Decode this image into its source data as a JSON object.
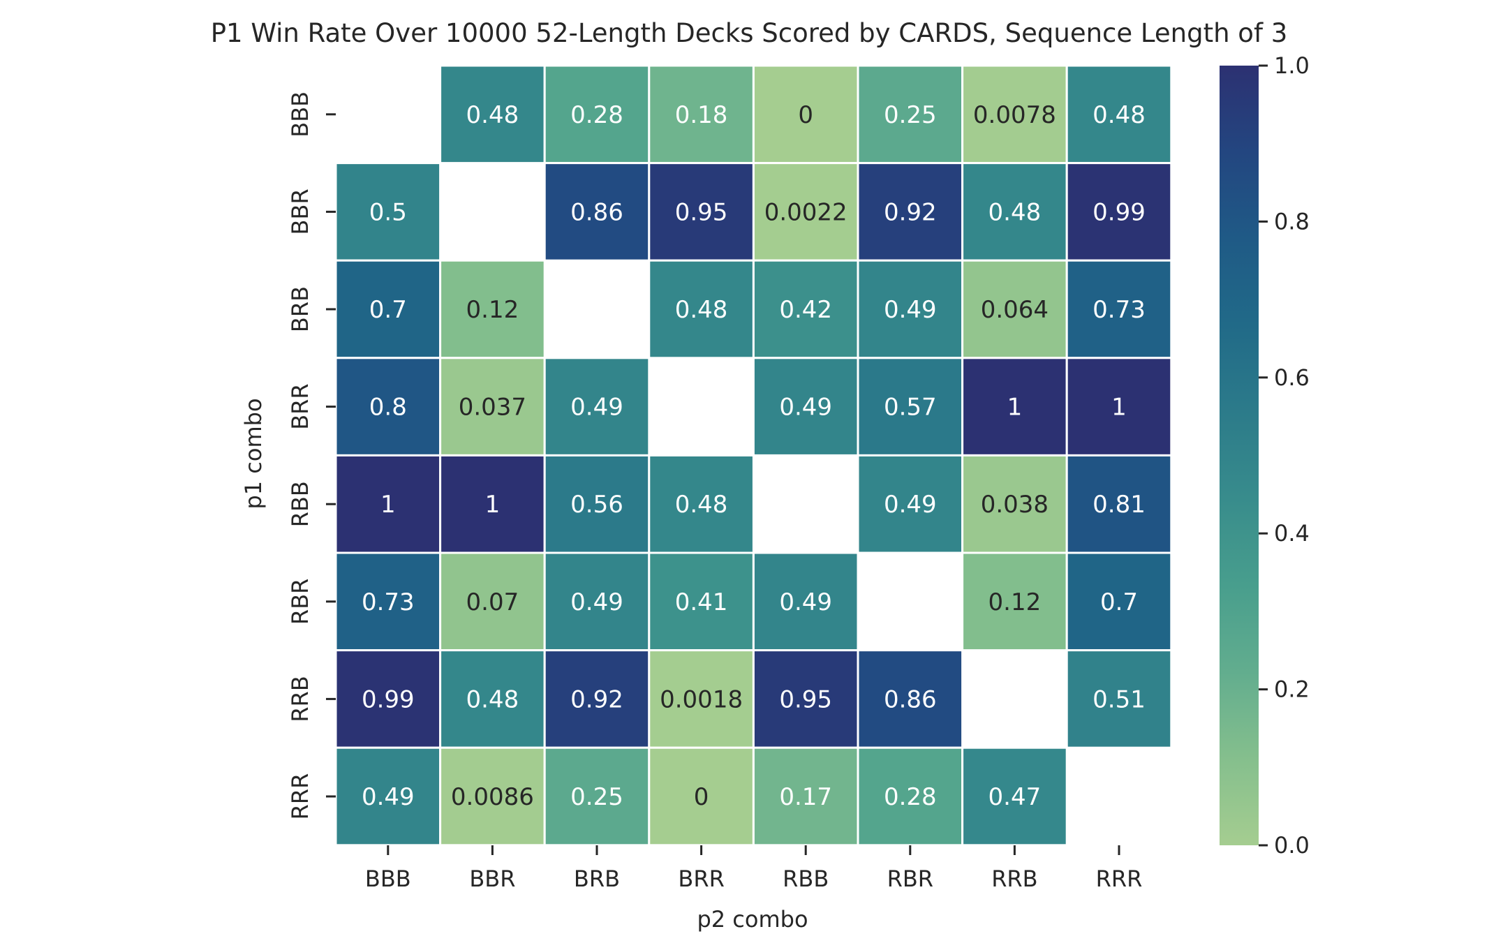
{
  "chart_data": {
    "type": "heatmap",
    "title": "P1 Win Rate Over 10000 52-Length Decks Scored by CARDS, Sequence Length of 3",
    "xlabel": "p2 combo",
    "ylabel": "p1 combo",
    "x_categories": [
      "BBB",
      "BBR",
      "BRB",
      "BRR",
      "RBB",
      "RBR",
      "RRB",
      "RRR"
    ],
    "y_categories": [
      "BBB",
      "BBR",
      "BRB",
      "BRR",
      "RBB",
      "RBR",
      "RRB",
      "RRR"
    ],
    "values": [
      [
        null,
        0.48,
        0.28,
        0.18,
        0,
        0.25,
        0.0078,
        0.48
      ],
      [
        0.5,
        null,
        0.86,
        0.95,
        0.0022,
        0.92,
        0.48,
        0.99
      ],
      [
        0.7,
        0.12,
        null,
        0.48,
        0.42,
        0.49,
        0.064,
        0.73
      ],
      [
        0.8,
        0.037,
        0.49,
        null,
        0.49,
        0.57,
        1,
        1
      ],
      [
        1,
        1,
        0.56,
        0.48,
        null,
        0.49,
        0.038,
        0.81
      ],
      [
        0.73,
        0.07,
        0.49,
        0.41,
        0.49,
        null,
        0.12,
        0.7
      ],
      [
        0.99,
        0.48,
        0.92,
        0.0018,
        0.95,
        0.86,
        null,
        0.51
      ],
      [
        0.49,
        0.0086,
        0.25,
        0,
        0.17,
        0.28,
        0.47,
        null
      ]
    ],
    "colorbar": {
      "range": [
        0,
        1
      ],
      "ticks": [
        0,
        0.2,
        0.4,
        0.6,
        0.8,
        1.0
      ],
      "tick_labels": [
        "0.0",
        "0.2",
        "0.4",
        "0.6",
        "0.8",
        "1.0"
      ],
      "colormap": "crest",
      "color_stops": [
        "#a5cd90",
        "#85bf8d",
        "#62ad8e",
        "#489e8d",
        "#388c8c",
        "#2c7b8a",
        "#216a88",
        "#1f5a86",
        "#234680",
        "#2c3172"
      ]
    },
    "grid": false,
    "cell_border_color": "#ffffff"
  }
}
